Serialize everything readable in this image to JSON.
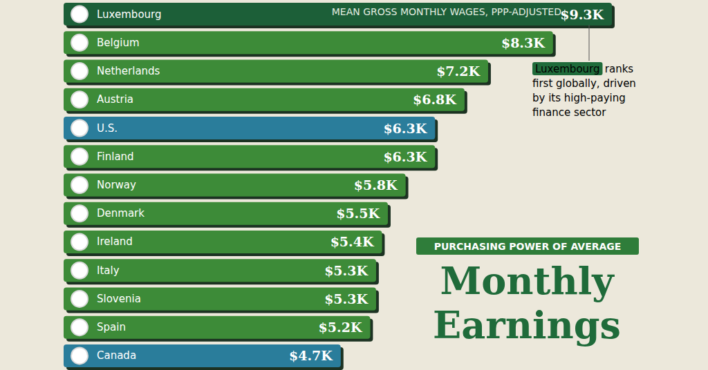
{
  "chart_data": {
    "type": "bar",
    "title": "Monthly Earnings",
    "subtitle": "PURCHASING POWER OF AVERAGE",
    "annotations": [
      {
        "text": "MEAN GROSS MONTHLY WAGES, PPP-ADJUSTED"
      },
      {
        "text": "Luxembourg ranks first globally, driven by its high-paying finance sector",
        "highlight": "Luxembourg"
      }
    ],
    "orientation": "horizontal",
    "categories": [
      "Luxembourg",
      "Belgium",
      "Netherlands",
      "Austria",
      "U.S.",
      "Finland",
      "Norway",
      "Denmark",
      "Ireland",
      "Italy",
      "Slovenia",
      "Spain",
      "Canada"
    ],
    "values": [
      9300,
      8300,
      7200,
      6800,
      6300,
      6300,
      5800,
      5500,
      5400,
      5300,
      5300,
      5200,
      4700
    ],
    "value_labels": [
      "$9.3K",
      "$8.3K",
      "$7.2K",
      "$6.8K",
      "$6.3K",
      "$6.3K",
      "$5.8K",
      "$5.5K",
      "$5.4K",
      "$5.3K",
      "$5.3K",
      "$5.2K",
      "$4.7K"
    ],
    "colors": [
      "#1f5f38",
      "#3d8b37",
      "#3d8b37",
      "#3d8b37",
      "#2b7d9b",
      "#3d8b37",
      "#3d8b37",
      "#3d8b37",
      "#3d8b37",
      "#3d8b37",
      "#3d8b37",
      "#3d8b37",
      "#2b7d9b"
    ],
    "xlim": [
      0,
      9300
    ],
    "data_labels": true,
    "tick_labels": "y",
    "grid": false
  }
}
